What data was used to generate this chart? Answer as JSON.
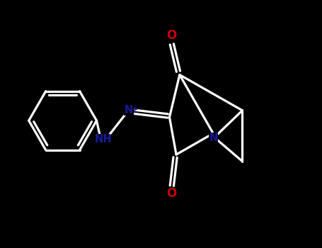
{
  "background_color": "#000000",
  "N_color": "#1a1a99",
  "O_color": "#cc0000",
  "lw": 2.3,
  "figsize": [
    4.55,
    3.5
  ],
  "dpi": 100,
  "xlim": [
    0,
    9.5
  ],
  "ylim": [
    0,
    7.3
  ]
}
